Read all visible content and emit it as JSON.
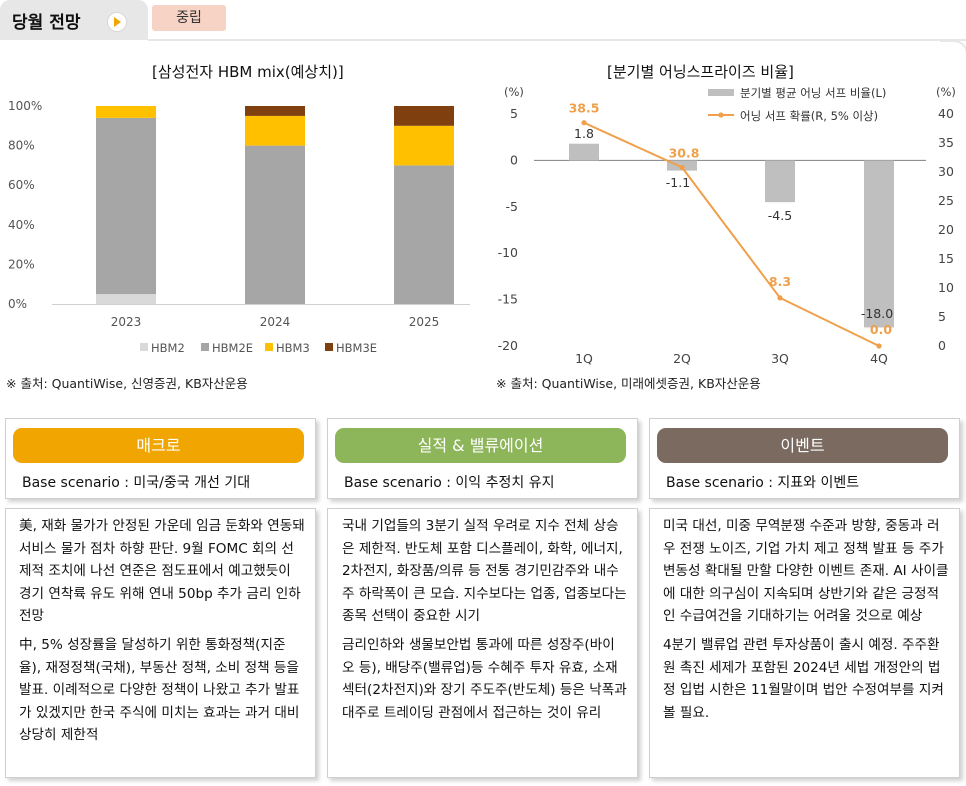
{
  "header": {
    "title": "당월 전망",
    "badge": "중립"
  },
  "chart1": {
    "title": "[삼성전자 HBM mix(예상치)]",
    "source": "※ 출처: QuantiWise, 신영증권, KB자산운용",
    "colors": {
      "HBM2": "#d9d9d9",
      "HBM2E": "#a6a6a6",
      "HBM3": "#ffc000",
      "HBM3E": "#7f3f0f"
    },
    "chart_data": {
      "type": "bar",
      "stacked": true,
      "categories": [
        "2023",
        "2024",
        "2025"
      ],
      "series": [
        {
          "name": "HBM2",
          "values": [
            5,
            0,
            0
          ]
        },
        {
          "name": "HBM2E",
          "values": [
            89,
            80,
            70
          ]
        },
        {
          "name": "HBM3",
          "values": [
            6,
            15,
            20
          ]
        },
        {
          "name": "HBM3E",
          "values": [
            0,
            5,
            10
          ]
        }
      ],
      "yticks": [
        "0%",
        "20%",
        "40%",
        "60%",
        "80%",
        "100%"
      ],
      "ylim": [
        0,
        100
      ],
      "legend": "bottom"
    }
  },
  "chart2": {
    "title": "[분기별 어닝스프라이즈 비율]",
    "source": "※ 출처: QuantiWise, 미래에셋증권, KB자산운용",
    "colors": {
      "bar": "#bfbfbf",
      "line": "#f0a04b",
      "label": "#f0a04b"
    },
    "chart_data": {
      "type": "bar+line",
      "categories": [
        "1Q",
        "2Q",
        "3Q",
        "4Q"
      ],
      "bar_series": {
        "name": "분기별 평균 어닝 서프 비율(L)",
        "values": [
          1.8,
          -1.1,
          -4.5,
          -18.0
        ],
        "labels": [
          "1.8",
          "-1.1",
          "-4.5",
          "-18.0"
        ]
      },
      "line_series": {
        "name": "어닝 서프 확률(R, 5% 이상)",
        "values": [
          38.5,
          30.8,
          8.3,
          0.0
        ],
        "labels": [
          "38.5",
          "30.8",
          "8.3",
          "0.0"
        ]
      },
      "left_axis": {
        "unit": "(%)",
        "ticks": [
          "5",
          "0",
          "-5",
          "-10",
          "-15",
          "-20"
        ],
        "range": [
          -20,
          5
        ]
      },
      "right_axis": {
        "unit": "(%)",
        "ticks": [
          "40",
          "35",
          "30",
          "25",
          "20",
          "15",
          "10",
          "5",
          "0"
        ],
        "range": [
          0,
          40
        ]
      },
      "legend": "top-right"
    }
  },
  "panels": [
    {
      "label": "매크로",
      "color": "#f0a500",
      "scenario": "Base scenario : 미국/중국 개선 기대",
      "paragraphs": [
        "美, 재화 물가가 안정된 가운데 임금 둔화와 연동돼 서비스 물가 점차 하향 판단. 9월 FOMC 회의 선제적 조치에 나선 연준은 점도표에서 예고했듯이 경기 연착륙 유도 위해 연내 50bp 추가 금리 인하 전망",
        "中, 5% 성장률을 달성하기 위한 통화정책(지준율), 재정정책(국채), 부동산 정책, 소비 정책 등을 발표. 이례적으로 다양한 정책이 나왔고 추가 발표가 있겠지만 한국 주식에 미치는 효과는 과거 대비 상당히 제한적"
      ]
    },
    {
      "label": "실적 & 밸류에이션",
      "color": "#8db55a",
      "scenario": "Base scenario : 이익 추정치 유지",
      "paragraphs": [
        "국내 기업들의 3분기 실적 우려로 지수 전체 상승은 제한적. 반도체 포함 디스플레이, 화학, 에너지, 2차전지, 화장품/의류 등 전통 경기민감주와 내수주 하락폭이 큰 모습. 지수보다는 업종, 업종보다는 종목 선택이 중요한 시기",
        "금리인하와 생물보안법 통과에 따른 성장주(바이오 등), 배당주(밸류업)등 수혜주 투자 유효, 소재섹터(2차전지)와 장기 주도주(반도체) 등은 낙폭과대주로 트레이딩 관점에서 접근하는 것이 유리"
      ]
    },
    {
      "label": "이벤트",
      "color": "#7a6a5f",
      "scenario": "Base scenario : 지표와 이벤트",
      "paragraphs": [
        "미국 대선, 미중 무역분쟁 수준과 방향, 중동과 러우 전쟁 노이즈, 기업 가치 제고 정책 발표 등 주가 변동성 확대될 만할 다양한 이벤트 존재. AI 사이클에 대한 의구심이 지속되며 상반기와 같은 긍정적인 수급여건을 기대하기는 어려울 것으로 예상",
        "4분기 밸류업 관련 투자상품이 출시 예정. 주주환원 촉진 세제가 포함된 2024년 세법 개정안의 법정 입법 시한은 11월말이며 법안 수정여부를 지켜볼 필요."
      ]
    }
  ]
}
